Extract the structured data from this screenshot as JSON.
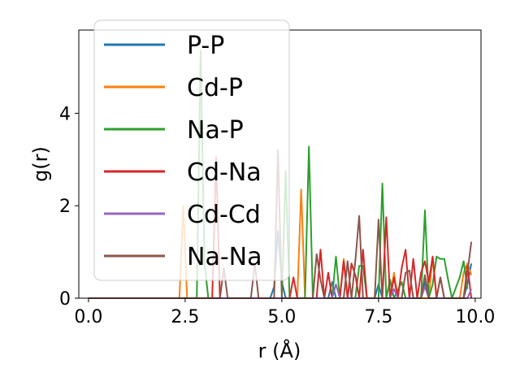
{
  "chart_data": {
    "type": "line",
    "xlabel": "r (Å)",
    "ylabel": "g(r)",
    "xlim": [
      -0.25,
      10.15
    ],
    "ylim": [
      0,
      5.8
    ],
    "x_ticks": [
      0.0,
      2.5,
      5.0,
      7.5,
      10.0
    ],
    "x_tick_labels": [
      "0.0",
      "2.5",
      "5.0",
      "7.5",
      "10.0"
    ],
    "y_ticks": [
      0,
      2,
      4
    ],
    "y_tick_labels": [
      "0",
      "2",
      "4"
    ],
    "legend_position": "top-left",
    "grid": false,
    "series": [
      {
        "name": "P-P",
        "color": "#1f77b4",
        "points": [
          [
            0.0,
            0
          ],
          [
            4.7,
            0
          ],
          [
            4.8,
            0.25
          ],
          [
            4.9,
            1.45
          ],
          [
            5.0,
            0.35
          ],
          [
            5.1,
            0
          ],
          [
            6.2,
            0
          ],
          [
            6.3,
            0.35
          ],
          [
            6.4,
            0
          ],
          [
            7.4,
            0
          ],
          [
            7.5,
            0.3
          ],
          [
            7.6,
            0
          ],
          [
            8.6,
            0
          ],
          [
            8.7,
            0.35
          ],
          [
            8.8,
            0
          ],
          [
            9.7,
            0
          ],
          [
            9.8,
            0.3
          ],
          [
            9.9,
            0.75
          ]
        ]
      },
      {
        "name": "Cd-P",
        "color": "#ff7f0e",
        "points": [
          [
            0.0,
            0
          ],
          [
            2.35,
            0
          ],
          [
            2.45,
            2.0
          ],
          [
            2.55,
            0
          ],
          [
            5.4,
            0
          ],
          [
            5.5,
            2.35
          ],
          [
            5.6,
            0
          ],
          [
            6.5,
            0
          ],
          [
            6.6,
            0.85
          ],
          [
            6.7,
            0
          ],
          [
            7.8,
            0
          ],
          [
            7.9,
            0.55
          ],
          [
            8.0,
            0
          ],
          [
            8.8,
            0
          ],
          [
            8.9,
            0.9
          ],
          [
            9.0,
            0
          ],
          [
            9.6,
            0
          ],
          [
            9.7,
            0.55
          ],
          [
            9.8,
            0.75
          ],
          [
            9.9,
            0.5
          ]
        ]
      },
      {
        "name": "Na-P",
        "color": "#2ca02c",
        "points": [
          [
            0.0,
            0
          ],
          [
            2.8,
            0
          ],
          [
            2.9,
            5.35
          ],
          [
            3.0,
            0.75
          ],
          [
            3.1,
            0
          ],
          [
            5.0,
            0
          ],
          [
            5.1,
            2.75
          ],
          [
            5.2,
            0
          ],
          [
            5.6,
            0
          ],
          [
            5.7,
            3.28
          ],
          [
            5.8,
            0
          ],
          [
            6.3,
            0
          ],
          [
            6.4,
            0.9
          ],
          [
            6.5,
            0
          ],
          [
            6.9,
            0
          ],
          [
            7.0,
            0.7
          ],
          [
            7.1,
            0.7
          ],
          [
            7.2,
            0
          ],
          [
            7.5,
            0
          ],
          [
            7.6,
            2.48
          ],
          [
            7.7,
            0
          ],
          [
            7.8,
            0.4
          ],
          [
            7.9,
            0
          ],
          [
            8.1,
            0.35
          ],
          [
            8.2,
            0
          ],
          [
            8.6,
            0
          ],
          [
            8.7,
            1.9
          ],
          [
            8.8,
            0
          ],
          [
            8.9,
            0.3
          ],
          [
            9.0,
            0.9
          ],
          [
            9.1,
            0.85
          ],
          [
            9.2,
            0.85
          ],
          [
            9.3,
            0.4
          ],
          [
            9.4,
            0
          ],
          [
            9.6,
            0.45
          ],
          [
            9.7,
            0.8
          ],
          [
            9.8,
            0.2
          ]
        ]
      },
      {
        "name": "Cd-Na",
        "color": "#d62728",
        "points": [
          [
            0.0,
            0
          ],
          [
            3.2,
            0
          ],
          [
            3.3,
            3.05
          ],
          [
            3.4,
            0
          ],
          [
            5.2,
            0
          ],
          [
            5.3,
            0.45
          ],
          [
            5.4,
            0
          ],
          [
            5.9,
            0
          ],
          [
            6.0,
            1.05
          ],
          [
            6.1,
            0
          ],
          [
            6.2,
            0.55
          ],
          [
            6.3,
            0
          ],
          [
            6.5,
            0
          ],
          [
            6.6,
            0.8
          ],
          [
            6.7,
            0
          ],
          [
            6.8,
            0.75
          ],
          [
            6.9,
            0.5
          ],
          [
            7.0,
            0
          ],
          [
            7.1,
            1.05
          ],
          [
            7.2,
            0
          ],
          [
            7.6,
            0
          ],
          [
            7.7,
            1.75
          ],
          [
            7.8,
            0
          ],
          [
            7.9,
            0.45
          ],
          [
            8.0,
            0
          ],
          [
            8.1,
            0.65
          ],
          [
            8.2,
            1.05
          ],
          [
            8.3,
            0
          ],
          [
            8.4,
            0.85
          ],
          [
            8.5,
            0
          ],
          [
            8.6,
            0.55
          ],
          [
            8.7,
            0.8
          ],
          [
            8.8,
            0.35
          ],
          [
            8.9,
            0.9
          ],
          [
            9.0,
            0
          ],
          [
            9.1,
            0.45
          ],
          [
            9.2,
            0
          ],
          [
            9.7,
            0
          ],
          [
            9.8,
            0.7
          ],
          [
            9.9,
            0
          ]
        ]
      },
      {
        "name": "Cd-Cd",
        "color": "#9467bd",
        "points": [
          [
            0.0,
            0
          ],
          [
            6.3,
            0
          ],
          [
            6.4,
            0.3
          ],
          [
            6.5,
            0
          ],
          [
            7.8,
            0
          ],
          [
            7.9,
            0.2
          ],
          [
            8.0,
            0
          ],
          [
            8.6,
            0
          ],
          [
            8.7,
            0.25
          ],
          [
            8.8,
            0
          ],
          [
            9.8,
            0
          ],
          [
            9.9,
            0.2
          ]
        ]
      },
      {
        "name": "Na-Na",
        "color": "#8c564b",
        "points": [
          [
            0.0,
            0
          ],
          [
            3.4,
            0
          ],
          [
            3.5,
            0.65
          ],
          [
            3.6,
            0
          ],
          [
            4.2,
            0
          ],
          [
            4.3,
            0.75
          ],
          [
            4.4,
            0
          ],
          [
            4.8,
            0
          ],
          [
            4.9,
            3.2
          ],
          [
            5.0,
            0
          ],
          [
            5.8,
            0
          ],
          [
            5.9,
            0.95
          ],
          [
            6.0,
            0.4
          ],
          [
            6.1,
            0
          ],
          [
            6.6,
            0
          ],
          [
            6.7,
            0.8
          ],
          [
            6.8,
            0
          ],
          [
            6.9,
            0.8
          ],
          [
            7.0,
            1.78
          ],
          [
            7.1,
            0
          ],
          [
            7.4,
            0
          ],
          [
            7.5,
            1.7
          ],
          [
            7.6,
            0
          ],
          [
            8.1,
            0
          ],
          [
            8.2,
            0.55
          ],
          [
            8.3,
            0.6
          ],
          [
            8.4,
            0
          ],
          [
            8.6,
            0
          ],
          [
            8.7,
            0.5
          ],
          [
            8.8,
            0
          ],
          [
            9.0,
            0
          ],
          [
            9.1,
            0.45
          ],
          [
            9.2,
            0
          ],
          [
            9.7,
            0
          ],
          [
            9.8,
            0.55
          ],
          [
            9.9,
            1.22
          ]
        ]
      }
    ]
  }
}
